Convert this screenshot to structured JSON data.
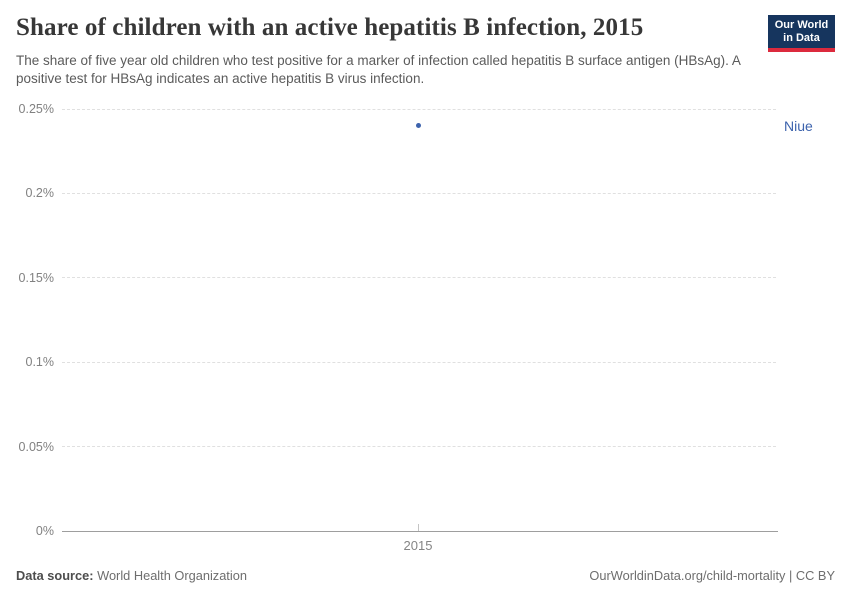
{
  "header": {
    "title": "Share of children with an active hepatitis B infection, 2015",
    "subtitle": "The share of five year old children who test positive for a marker of infection called hepatitis B surface antigen (HBsAg). A positive test for HBsAg indicates an active hepatitis B virus infection.",
    "logo": {
      "line1": "Our World",
      "line2": "in Data",
      "bg_color": "#16355e",
      "accent_color": "#dc2a3d"
    }
  },
  "chart_data": {
    "type": "scatter",
    "title": "Share of children with an active hepatitis B infection, 2015",
    "series": [
      {
        "name": "Niue",
        "x": [
          2015
        ],
        "y": [
          0.24
        ],
        "color": "#3d63ad"
      }
    ],
    "x_ticks": [
      "2015"
    ],
    "xlim": [
      2015,
      2015
    ],
    "ylim": [
      0,
      0.25
    ],
    "y_axis": {
      "unit": "%",
      "ticks": [
        {
          "value": 0,
          "label": "0%"
        },
        {
          "value": 0.05,
          "label": "0.05%"
        },
        {
          "value": 0.1,
          "label": "0.1%"
        },
        {
          "value": 0.15,
          "label": "0.15%"
        },
        {
          "value": 0.2,
          "label": "0.2%"
        },
        {
          "value": 0.25,
          "label": "0.25%"
        }
      ]
    },
    "grid": "horizontal-dashed",
    "legend_position": "right-of-plot"
  },
  "footer": {
    "datasource_label": "Data source:",
    "datasource_value": "World Health Organization",
    "credit": "OurWorldinData.org/child-mortality | CC BY"
  }
}
